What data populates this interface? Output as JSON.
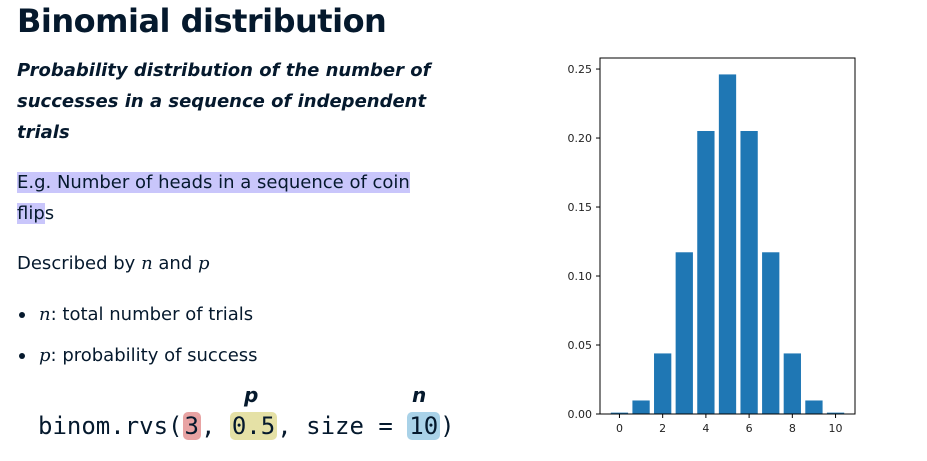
{
  "title": "Binomial distribution",
  "definition": {
    "lines": [
      "Probability distribution of the number of",
      "successes in a sequence of independent",
      "trials"
    ]
  },
  "example": {
    "highlighted_1": "E.g. Number of heads in a sequence of coin ",
    "highlighted_2": "flip",
    "tail": "s"
  },
  "described": {
    "prefix": "Described by ",
    "var_n": "n",
    "middle": " and ",
    "var_p": "p"
  },
  "bullets": [
    {
      "var": "n",
      "text": ": total number of trials"
    },
    {
      "var": "p",
      "text": ": probability of success"
    }
  ],
  "code": {
    "prefix": "binom.rvs(",
    "arg_k": "3",
    "sep1": ", ",
    "arg_p": "0.5",
    "sep2": ", size = ",
    "arg_n": "10",
    "suffix": ")",
    "label_p": "p",
    "label_n": "n"
  },
  "colors": {
    "text": "#05192d",
    "highlight": "#c9c6fb",
    "arg_k_bg": "#e8a3a3",
    "arg_p_bg": "#e5e1a6",
    "arg_n_bg": "#a9d2e8",
    "bar": "#1f77b4"
  },
  "chart_data": {
    "type": "bar",
    "x": [
      0,
      1,
      2,
      3,
      4,
      5,
      6,
      7,
      8,
      9,
      10
    ],
    "values": [
      0.001,
      0.0098,
      0.0439,
      0.1172,
      0.2051,
      0.2461,
      0.2051,
      0.1172,
      0.0439,
      0.0098,
      0.001
    ],
    "xticks": [
      0,
      2,
      4,
      6,
      8,
      10
    ],
    "yticks": [
      0.0,
      0.05,
      0.1,
      0.15,
      0.2,
      0.25
    ],
    "ytick_labels": [
      "0.00",
      "0.05",
      "0.10",
      "0.15",
      "0.20",
      "0.25"
    ],
    "xlim": [
      -0.9,
      10.9
    ],
    "ylim": [
      0,
      0.258
    ],
    "title": "",
    "xlabel": "",
    "ylabel": "",
    "grid": false
  }
}
